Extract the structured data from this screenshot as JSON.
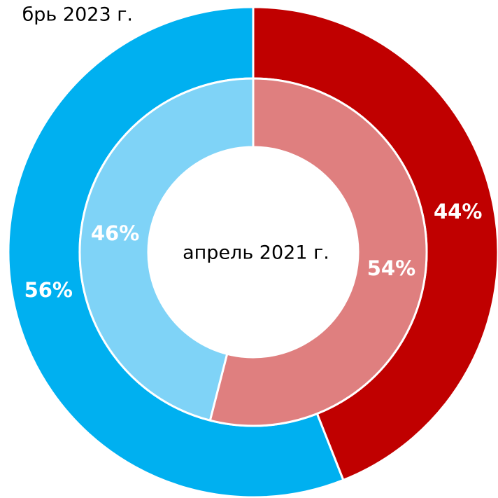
{
  "chart_data": {
    "type": "donut",
    "series": [
      {
        "name": "брь 2023 г.",
        "values": [
          44,
          56
        ],
        "value_labels": [
          "44%",
          "56%"
        ],
        "colors": [
          "#c00000",
          "#00b0f0"
        ]
      },
      {
        "name": "апрель 2021 г.",
        "values": [
          54,
          46
        ],
        "value_labels": [
          "54%",
          "46%"
        ],
        "colors": [
          "#df7f7f",
          "#7fd3f7"
        ]
      }
    ]
  }
}
